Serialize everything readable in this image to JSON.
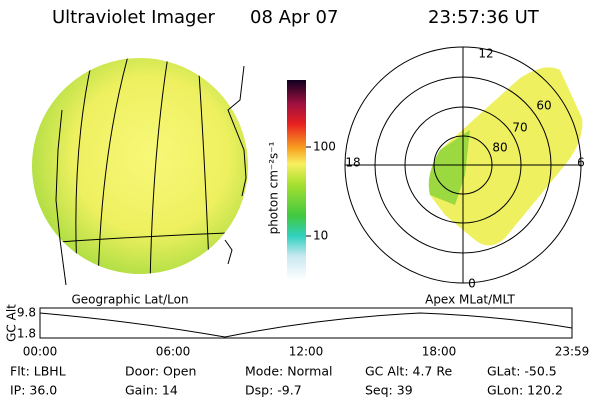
{
  "header": {
    "title": "Ultraviolet Imager",
    "date": "08 Apr 07",
    "time": "23:57:36 UT"
  },
  "geo_panel": {
    "label": "Geographic Lat/Lon"
  },
  "colorbar": {
    "label": "photon cm⁻²s⁻¹",
    "ticks": [
      "100",
      "10"
    ]
  },
  "polar_panel": {
    "label": "Apex MLat/MLT",
    "mlt": [
      "12",
      "18",
      "6",
      "0"
    ],
    "mlat": [
      "60",
      "70",
      "80"
    ]
  },
  "altitude_plot": {
    "axis_label": "GC Alt",
    "yticks": [
      "9.8",
      "1.8"
    ],
    "xticks": [
      "00:00",
      "06:00",
      "12:00",
      "18:00",
      "23:59"
    ]
  },
  "info": [
    [
      "Flt: LBHL",
      "Door: Open",
      "Mode: Normal",
      "GC Alt: 4.7 Re",
      "GLat: -50.5"
    ],
    [
      "IP: 36.0",
      "Gain: 14",
      "Dsp:  -9.7",
      "Seq: 39",
      "GLon: 120.2"
    ]
  ]
}
